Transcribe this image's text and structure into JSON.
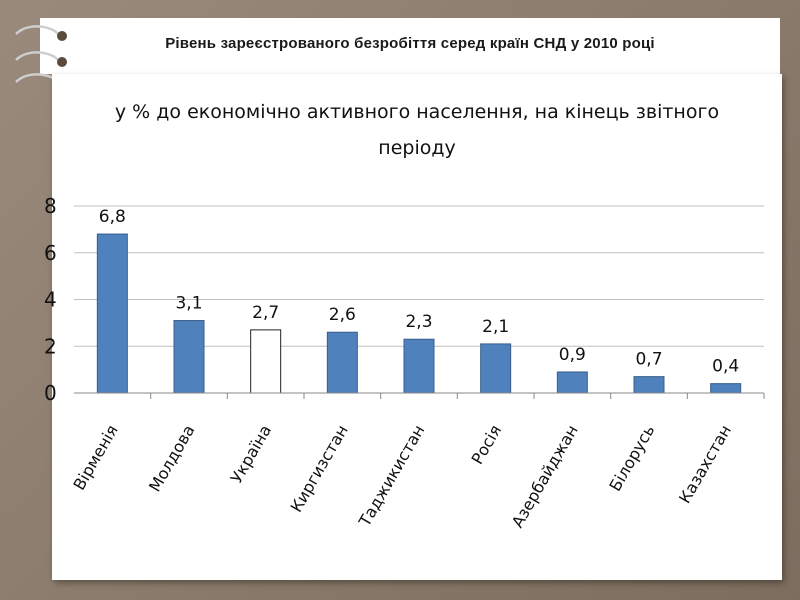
{
  "slide": {
    "title": "Рівень зареєстрованого безробіття серед країн СНД у 2010 році"
  },
  "colors": {
    "bar_fill": "#4f81bd",
    "bar_stroke": "#385d8a",
    "highlight_fill": "#ffffff",
    "highlight_stroke": "#222222",
    "gridline": "#c0c0c0"
  },
  "chart_data": {
    "type": "bar",
    "title_lines": [
      "у % до економічно активного населення, на кінець звітного",
      "періоду"
    ],
    "categories": [
      "Вірменія",
      "Молдова",
      "Україна",
      "Киргизстан",
      "Таджикистан",
      "Росія",
      "Азербайджан",
      "Білорусь",
      "Казахстан"
    ],
    "values": [
      6.8,
      3.1,
      2.7,
      2.6,
      2.3,
      2.1,
      0.9,
      0.7,
      0.4
    ],
    "value_labels": [
      "6,8",
      "3,1",
      "2,7",
      "2,6",
      "2,3",
      "2,1",
      "0,9",
      "0,7",
      "0,4"
    ],
    "highlighted_category": "Україна",
    "ylim": [
      0,
      8
    ],
    "yticks": [
      0,
      2,
      4,
      6,
      8
    ],
    "ytick_labels": [
      "0",
      "2",
      "4",
      "6",
      "8"
    ],
    "grid": true,
    "legend": "none",
    "xlabel": "",
    "ylabel": ""
  }
}
